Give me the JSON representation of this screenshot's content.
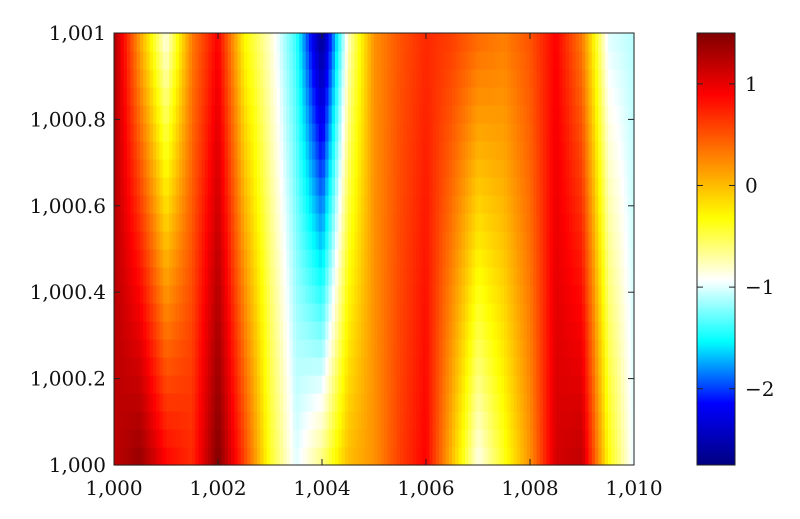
{
  "chart_data": {
    "type": "heatmap",
    "title": "",
    "xlabel": "",
    "ylabel": "",
    "xlim": [
      1.0,
      1.01
    ],
    "ylim": [
      1000.0,
      1001.0
    ],
    "x_ticks": [
      1.0,
      1.002,
      1.004,
      1.006,
      1.008,
      1.01
    ],
    "x_tick_labels": [
      "1,000",
      "1,002",
      "1,004",
      "1,006",
      "1,008",
      "1,010"
    ],
    "y_ticks": [
      1000.0,
      1000.2,
      1000.4,
      1000.6,
      1000.8,
      1001.0
    ],
    "y_tick_labels": [
      "1,000",
      "1,000.2",
      "1,000.4",
      "1,000.6",
      "1,000.8",
      "1,001"
    ],
    "colormap": "jet-like (dark blue, blue, cyan, white, yellow, orange, red, dark red)",
    "colormap_stops": [
      "#000080",
      "#0000ff",
      "#00ffff",
      "#ffffff",
      "#ffff00",
      "#ff8000",
      "#ff0000",
      "#800000"
    ],
    "colorbar": {
      "range": [
        -2.75,
        1.5
      ],
      "ticks": [
        1,
        0,
        -1,
        -2
      ],
      "tick_labels": [
        "1",
        "0",
        "−1",
        "−2"
      ]
    },
    "x": [
      1.0,
      1.0005,
      1.001,
      1.0015,
      1.002,
      1.0025,
      1.003,
      1.0035,
      1.004,
      1.0045,
      1.005,
      1.0055,
      1.006,
      1.0065,
      1.007,
      1.0075,
      1.008,
      1.0085,
      1.009,
      1.0095,
      1.01
    ],
    "y": [
      1000.0,
      1001.0
    ],
    "z": [
      [
        1.2,
        1.4,
        0.9,
        0.7,
        1.5,
        0.6,
        -0.4,
        -1.0,
        -0.6,
        0.0,
        0.2,
        0.6,
        0.9,
        0.0,
        -0.9,
        -0.4,
        0.2,
        1.1,
        1.2,
        -0.3,
        -1.0
      ],
      [
        1.3,
        0.1,
        -0.9,
        0.3,
        0.9,
        -0.3,
        -0.8,
        -1.4,
        -2.7,
        -0.8,
        0.2,
        0.5,
        0.7,
        0.6,
        0.4,
        0.3,
        0.5,
        0.9,
        0.3,
        -1.0,
        -1.1
      ]
    ]
  }
}
